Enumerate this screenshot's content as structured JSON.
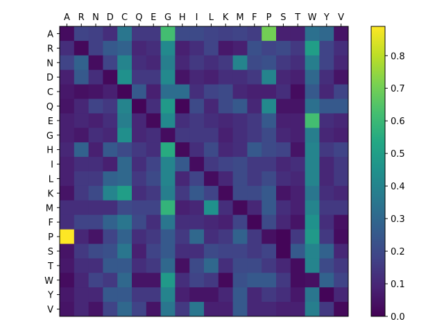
{
  "chart_data": {
    "type": "heatmap",
    "title": "",
    "xlabel": "",
    "ylabel": "",
    "x_categories": [
      "A",
      "R",
      "N",
      "D",
      "C",
      "Q",
      "E",
      "G",
      "H",
      "I",
      "L",
      "K",
      "M",
      "F",
      "P",
      "S",
      "T",
      "W",
      "Y",
      "V"
    ],
    "y_categories": [
      "A",
      "R",
      "N",
      "D",
      "C",
      "Q",
      "E",
      "G",
      "H",
      "I",
      "L",
      "K",
      "M",
      "F",
      "P",
      "S",
      "T",
      "W",
      "Y",
      "V"
    ],
    "x_tick_position": "top",
    "colormap": "viridis",
    "colorbar": {
      "vmin": 0.0,
      "vmax": 0.89,
      "ticks": [
        0.0,
        0.1,
        0.2,
        0.3,
        0.4,
        0.5,
        0.6,
        0.7,
        0.8
      ],
      "tick_labels": [
        "0.0",
        "0.1",
        "0.2",
        "0.3",
        "0.4",
        "0.5",
        "0.6",
        "0.7",
        "0.8"
      ],
      "position": "right"
    },
    "values": [
      [
        0.03,
        0.18,
        0.17,
        0.12,
        0.35,
        0.15,
        0.15,
        0.62,
        0.2,
        0.2,
        0.18,
        0.17,
        0.18,
        0.16,
        0.7,
        0.08,
        0.08,
        0.33,
        0.3,
        0.05
      ],
      [
        0.12,
        0.02,
        0.17,
        0.25,
        0.28,
        0.1,
        0.12,
        0.42,
        0.08,
        0.12,
        0.18,
        0.06,
        0.08,
        0.22,
        0.18,
        0.2,
        0.15,
        0.5,
        0.18,
        0.12
      ],
      [
        0.18,
        0.28,
        0.03,
        0.18,
        0.4,
        0.12,
        0.1,
        0.38,
        0.1,
        0.15,
        0.12,
        0.15,
        0.4,
        0.2,
        0.22,
        0.15,
        0.12,
        0.38,
        0.18,
        0.1
      ],
      [
        0.08,
        0.25,
        0.12,
        0.02,
        0.45,
        0.15,
        0.15,
        0.42,
        0.05,
        0.1,
        0.08,
        0.12,
        0.12,
        0.15,
        0.4,
        0.1,
        0.08,
        0.3,
        0.12,
        0.05
      ],
      [
        0.06,
        0.04,
        0.05,
        0.08,
        0.01,
        0.25,
        0.08,
        0.32,
        0.32,
        0.12,
        0.18,
        0.2,
        0.1,
        0.08,
        0.08,
        0.12,
        0.03,
        0.25,
        0.1,
        0.18
      ],
      [
        0.05,
        0.1,
        0.18,
        0.15,
        0.4,
        0.01,
        0.12,
        0.48,
        0.01,
        0.2,
        0.1,
        0.2,
        0.25,
        0.1,
        0.42,
        0.05,
        0.05,
        0.33,
        0.25,
        0.25
      ],
      [
        0.08,
        0.1,
        0.08,
        0.12,
        0.38,
        0.1,
        0.02,
        0.42,
        0.12,
        0.15,
        0.12,
        0.1,
        0.12,
        0.15,
        0.25,
        0.08,
        0.08,
        0.62,
        0.12,
        0.1
      ],
      [
        0.08,
        0.06,
        0.12,
        0.1,
        0.44,
        0.1,
        0.12,
        0.03,
        0.15,
        0.15,
        0.15,
        0.08,
        0.12,
        0.15,
        0.2,
        0.1,
        0.08,
        0.38,
        0.1,
        0.08
      ],
      [
        0.1,
        0.28,
        0.08,
        0.25,
        0.2,
        0.15,
        0.12,
        0.55,
        0.02,
        0.12,
        0.2,
        0.1,
        0.12,
        0.25,
        0.2,
        0.18,
        0.05,
        0.4,
        0.15,
        0.18
      ],
      [
        0.08,
        0.12,
        0.12,
        0.08,
        0.3,
        0.12,
        0.18,
        0.4,
        0.25,
        0.03,
        0.15,
        0.18,
        0.2,
        0.15,
        0.15,
        0.1,
        0.12,
        0.4,
        0.1,
        0.15
      ],
      [
        0.08,
        0.15,
        0.15,
        0.28,
        0.3,
        0.15,
        0.2,
        0.4,
        0.1,
        0.18,
        0.03,
        0.1,
        0.2,
        0.15,
        0.2,
        0.12,
        0.1,
        0.4,
        0.1,
        0.15
      ],
      [
        0.05,
        0.15,
        0.2,
        0.4,
        0.5,
        0.12,
        0.15,
        0.38,
        0.15,
        0.25,
        0.18,
        0.02,
        0.2,
        0.2,
        0.25,
        0.05,
        0.08,
        0.35,
        0.12,
        0.1
      ],
      [
        0.12,
        0.12,
        0.12,
        0.12,
        0.2,
        0.18,
        0.18,
        0.58,
        0.08,
        0.1,
        0.45,
        0.12,
        0.02,
        0.1,
        0.25,
        0.12,
        0.08,
        0.4,
        0.15,
        0.15
      ],
      [
        0.12,
        0.18,
        0.18,
        0.28,
        0.35,
        0.2,
        0.12,
        0.35,
        0.12,
        0.12,
        0.1,
        0.08,
        0.18,
        0.01,
        0.2,
        0.1,
        0.05,
        0.45,
        0.12,
        0.04
      ],
      [
        0.89,
        0.1,
        0.05,
        0.18,
        0.28,
        0.12,
        0.15,
        0.25,
        0.15,
        0.3,
        0.12,
        0.15,
        0.28,
        0.15,
        0.04,
        0.01,
        0.15,
        0.48,
        0.15,
        0.03
      ],
      [
        0.05,
        0.15,
        0.2,
        0.22,
        0.35,
        0.08,
        0.18,
        0.25,
        0.12,
        0.12,
        0.2,
        0.18,
        0.18,
        0.15,
        0.18,
        0.01,
        0.25,
        0.4,
        0.28,
        0.1
      ],
      [
        0.06,
        0.12,
        0.12,
        0.25,
        0.25,
        0.12,
        0.15,
        0.3,
        0.04,
        0.2,
        0.3,
        0.12,
        0.2,
        0.2,
        0.15,
        0.1,
        0.03,
        0.4,
        0.2,
        0.15
      ],
      [
        0.03,
        0.1,
        0.18,
        0.15,
        0.3,
        0.05,
        0.05,
        0.48,
        0.12,
        0.18,
        0.15,
        0.02,
        0.22,
        0.25,
        0.25,
        0.15,
        0.03,
        0.04,
        0.28,
        0.18
      ],
      [
        0.06,
        0.1,
        0.1,
        0.25,
        0.25,
        0.15,
        0.15,
        0.4,
        0.08,
        0.05,
        0.05,
        0.1,
        0.25,
        0.1,
        0.15,
        0.12,
        0.06,
        0.35,
        0.01,
        0.1
      ],
      [
        0.05,
        0.1,
        0.05,
        0.18,
        0.3,
        0.18,
        0.05,
        0.35,
        0.15,
        0.35,
        0.08,
        0.08,
        0.25,
        0.1,
        0.1,
        0.08,
        0.08,
        0.38,
        0.15,
        0.02
      ]
    ]
  }
}
